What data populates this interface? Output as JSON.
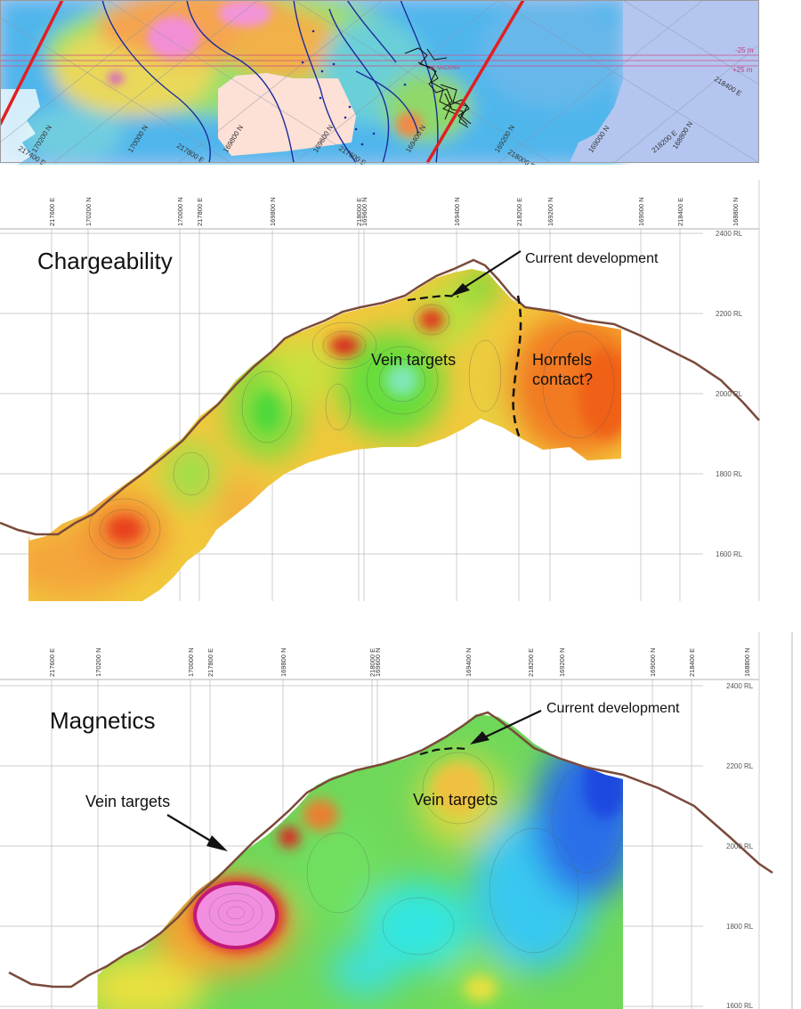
{
  "plan": {
    "labels": [
      "-25 m",
      "+25 m",
      "218400 E",
      "218200 E",
      "168800 N",
      "169000 N",
      "218000 E",
      "169200 N",
      "169400 N",
      "169600 N",
      "169800 N",
      "170000 N",
      "170200 N",
      "217400 E",
      "217600 E",
      "217800 E",
      "VA MADERA"
    ]
  },
  "chargeability": {
    "title": "Chargeability",
    "ticks": [
      "217600 E",
      "170200 N",
      "170000 N",
      "217800 E",
      "169800 N",
      "218000 E",
      "169600 N",
      "169400 N",
      "218200 E",
      "169200 N",
      "169000 N",
      "218400 E",
      "168800 N"
    ],
    "rl": [
      "2400 RL",
      "2200 RL",
      "2000 RL",
      "1800 RL",
      "1600 RL"
    ],
    "annotations": {
      "current": "Current development",
      "vein": "Vein targets",
      "hornfels_1": "Hornfels",
      "hornfels_2": "contact?"
    }
  },
  "magnetics": {
    "title": "Magnetics",
    "ticks": [
      "217600 E",
      "170200 N",
      "170000 N",
      "217800 E",
      "169800 N",
      "218000 E",
      "169600 N",
      "169400 N",
      "218200 E",
      "169200 N",
      "169000 N",
      "218400 E",
      "168800 N"
    ],
    "rl": [
      "2400 RL",
      "2200 RL",
      "2000 RL",
      "1800 RL",
      "1600 RL"
    ],
    "annotations": {
      "current": "Current development",
      "vein_left": "Vein targets",
      "vein_center": "Vein targets"
    }
  }
}
